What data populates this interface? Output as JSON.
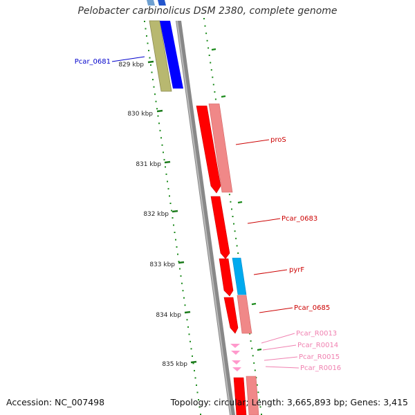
{
  "title": "Pelobacter carbinolicus DSM 2380, complete genome",
  "accession_text": "Accession: NC_007498",
  "summary_text": "Topology: circular; Length: 3,665,893 bp; Genes: 3,415",
  "ticks": [
    {
      "label": "829 kbp"
    },
    {
      "label": "830 kbp"
    },
    {
      "label": "831 kbp"
    },
    {
      "label": "832 kbp"
    },
    {
      "label": "833 kbp"
    },
    {
      "label": "834 kbp"
    },
    {
      "label": "835 kbp"
    }
  ],
  "genes": [
    {
      "label": "Pcar_0681",
      "color": "#0000cc"
    },
    {
      "label": "proS",
      "color": "#cc0000"
    },
    {
      "label": "Pcar_0683",
      "color": "#cc0000"
    },
    {
      "label": "pyrF",
      "color": "#cc0000"
    },
    {
      "label": "Pcar_0685",
      "color": "#cc0000"
    },
    {
      "label": "Pcar_R0013",
      "color": "#f080b0"
    },
    {
      "label": "Pcar_R0014",
      "color": "#f080b0"
    },
    {
      "label": "Pcar_R0015",
      "color": "#f080b0"
    },
    {
      "label": "Pcar_R0016",
      "color": "#f080b0"
    }
  ],
  "colors": {
    "backbone": "#888888",
    "dotted_ring": "#1a8a1a",
    "cds_red": "#ff0000",
    "cds_pink": "#f08888",
    "cds_blue": "#0000ff",
    "cds_olive": "#b8b870",
    "cds_cyan": "#00aaee",
    "rna_pink": "#ff99cc"
  }
}
